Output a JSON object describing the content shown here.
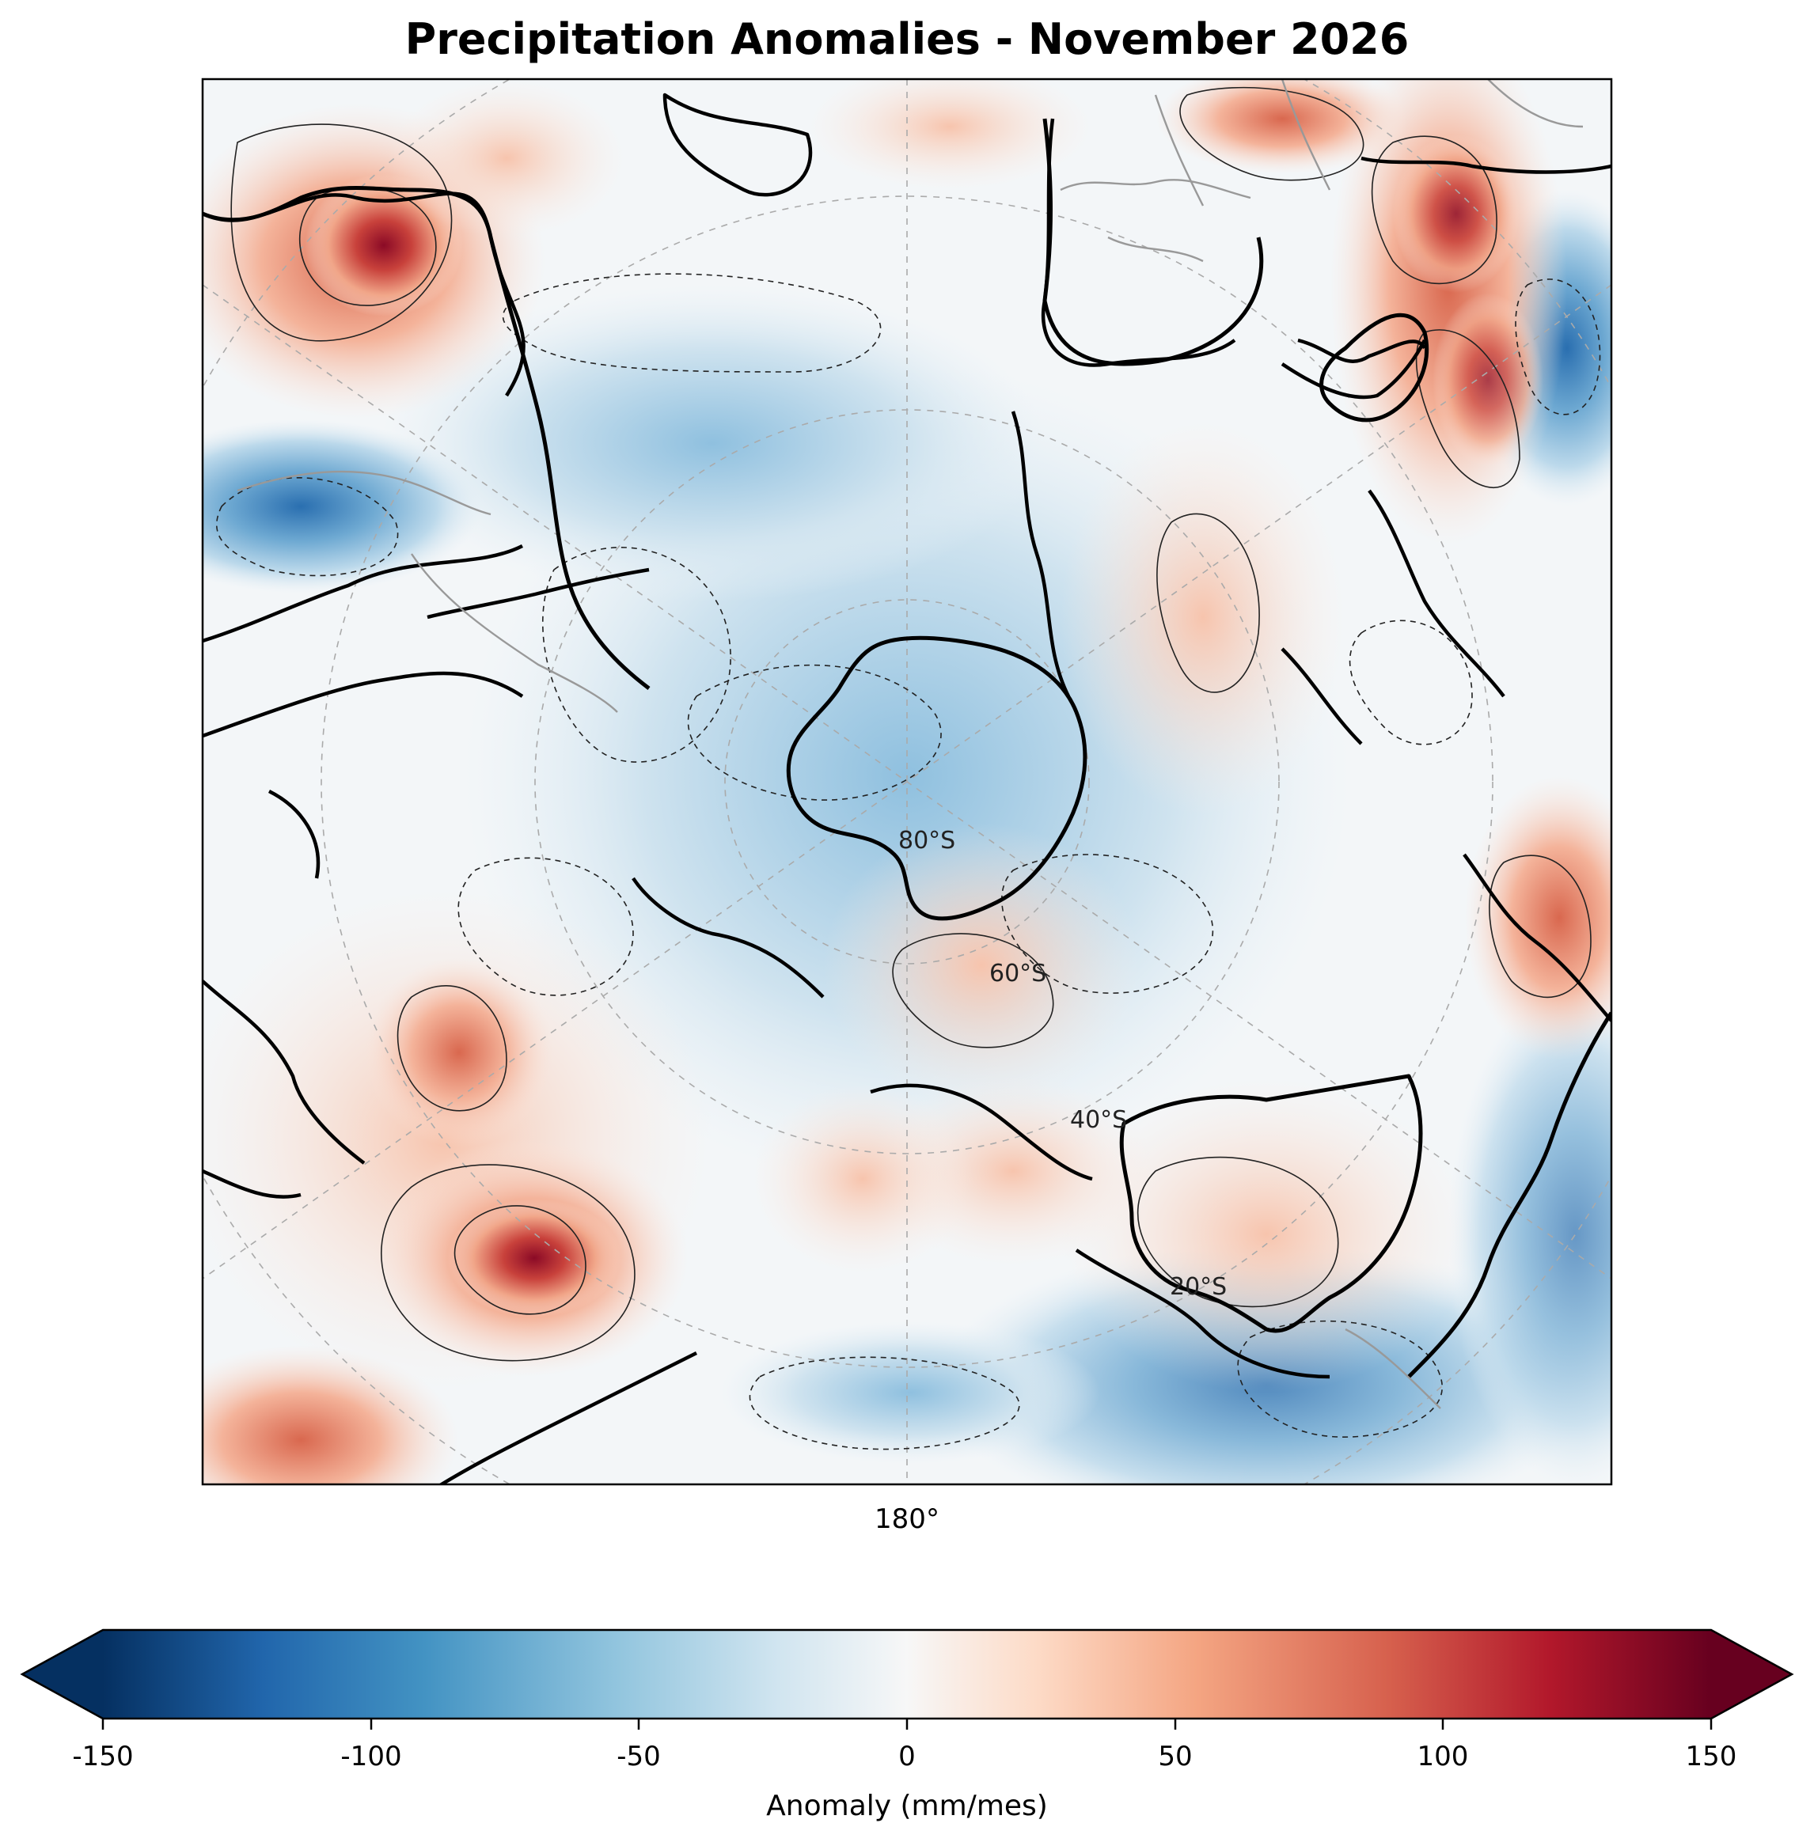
{
  "title": "Precipitation Anomalies - November 2026",
  "longitude_label": "180°",
  "latitude_labels": [
    "80°S",
    "60°S",
    "40°S",
    "20°S"
  ],
  "colorbar": {
    "label": "Anomaly (mm/mes)",
    "ticks": [
      "-150",
      "-100",
      "-50",
      "0",
      "50",
      "100",
      "150"
    ],
    "range": [
      -150,
      150
    ],
    "extend": "both",
    "colormap": "RdBu_r",
    "colors": [
      "#053061",
      "#2166ac",
      "#4393c3",
      "#92c5de",
      "#d1e5f0",
      "#f7f7f7",
      "#fddbc7",
      "#f4a582",
      "#d6604d",
      "#b2182b",
      "#67001f"
    ]
  },
  "map": {
    "projection": "south-polar-stereographic",
    "central_longitude": "180°",
    "contour_style": "solid = positive, dashed = negative, bold = zero",
    "colors": {
      "positive_max": "#8b0a26",
      "negative_max": "#2a6fb0",
      "neutral": "#f4f4f4"
    }
  }
}
